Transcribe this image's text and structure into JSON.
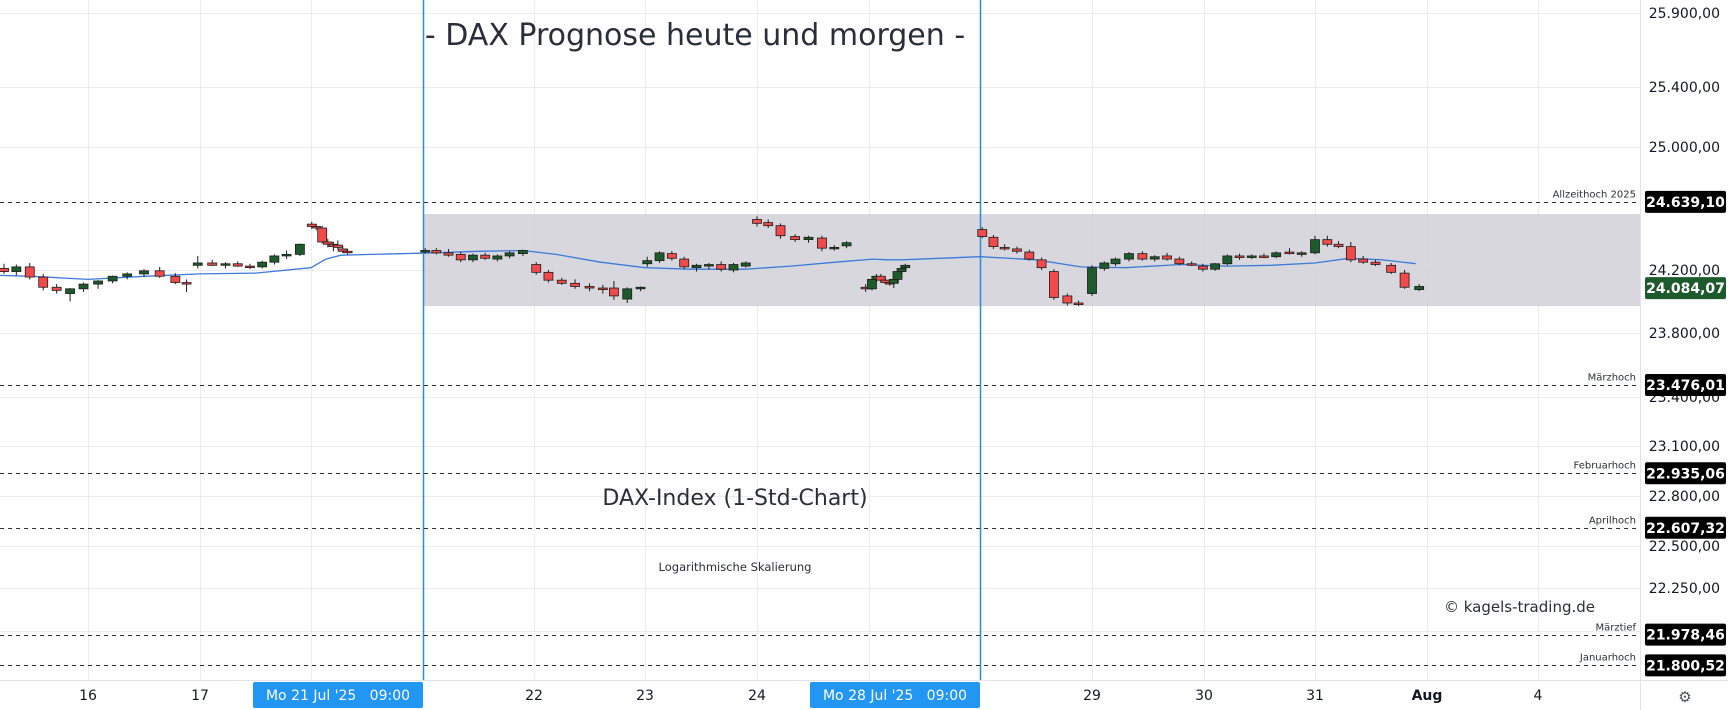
{
  "title": "- DAX Prognose heute und morgen -",
  "subtitle": "DAX-Index (1-Std-Chart)",
  "scale_note": "Logarithmische Skalierung",
  "copyright": "© kagels-trading.de",
  "settings_icon": "settings-gear-icon",
  "colors": {
    "up": "#1e5b2c",
    "down": "#f04a4a",
    "ma": "#3d7bd9",
    "zone": "#d3d3d9",
    "vline": "#2a8bd6",
    "grid": "#ececee",
    "label_bg": "#000000",
    "date_label_bg": "#2196f3"
  },
  "chart_data": {
    "type": "candlestick",
    "title": "- DAX Prognose heute und morgen -",
    "subtitle": "DAX-Index (1-Std-Chart)",
    "y_scale": "log",
    "ylim": [
      21650,
      26050
    ],
    "y_ticks": [
      "25.900,00",
      "25.400,00",
      "25.000,00",
      "24.200,00",
      "23.800,00",
      "23.400,00",
      "23.100,00",
      "22.800,00",
      "22.500,00",
      "22.250,00",
      "22.000,00"
    ],
    "x_ticks": [
      "16",
      "17",
      "18",
      "Mo 21 Jul '25   09:00",
      "22",
      "23",
      "24",
      "25",
      "Mo 28 Jul '25   09:00",
      "29",
      "30",
      "31",
      "Aug",
      "4"
    ],
    "highlighted_x_labels": [
      "Mo 21 Jul '25   09:00",
      "Mo 28 Jul '25   09:00"
    ],
    "x_tick_days": [
      16,
      17,
      18,
      21,
      22,
      23,
      24,
      25,
      28,
      29,
      30,
      31,
      32,
      35
    ],
    "vertical_markers": [
      21,
      28
    ],
    "range_zone": {
      "from_day": 21,
      "low": 23970,
      "high": 24560
    },
    "levels": [
      {
        "label": "Allzeithoch 2025",
        "value": 24639.1,
        "price_label": "24.639,10"
      },
      {
        "label": "Märzhoch",
        "value": 23476.01,
        "price_label": "23.476,01"
      },
      {
        "label": "Februarhoch",
        "value": 22935.06,
        "price_label": "22.935,06"
      },
      {
        "label": "Aprilhoch",
        "value": 22607.32,
        "price_label": "22.607,32"
      },
      {
        "label": "Märztief",
        "value": 21978.46,
        "price_label": "21.978,46"
      },
      {
        "label": "Januarhoch",
        "value": 21800.52,
        "price_label": "21.800,52"
      }
    ],
    "last_price": {
      "value": 24084.07,
      "label": "24.084,07"
    },
    "candles": [
      {
        "d": 15.15,
        "o": 24225,
        "h": 24245,
        "l": 24185,
        "c": 24210
      },
      {
        "d": 15.25,
        "o": 24210,
        "h": 24240,
        "l": 24175,
        "c": 24190
      },
      {
        "d": 15.36,
        "o": 24190,
        "h": 24235,
        "l": 24165,
        "c": 24220
      },
      {
        "d": 15.48,
        "o": 24220,
        "h": 24245,
        "l": 24140,
        "c": 24155
      },
      {
        "d": 15.6,
        "o": 24155,
        "h": 24175,
        "l": 24070,
        "c": 24090
      },
      {
        "d": 15.72,
        "o": 24090,
        "h": 24110,
        "l": 24050,
        "c": 24070
      },
      {
        "d": 15.84,
        "o": 24050,
        "h": 24085,
        "l": 24000,
        "c": 24080
      },
      {
        "d": 15.96,
        "o": 24080,
        "h": 24120,
        "l": 24060,
        "c": 24110
      },
      {
        "d": 16.09,
        "o": 24110,
        "h": 24135,
        "l": 24080,
        "c": 24130
      },
      {
        "d": 16.22,
        "o": 24130,
        "h": 24165,
        "l": 24115,
        "c": 24160
      },
      {
        "d": 16.35,
        "o": 24160,
        "h": 24185,
        "l": 24140,
        "c": 24175
      },
      {
        "d": 16.5,
        "o": 24175,
        "h": 24205,
        "l": 24155,
        "c": 24195
      },
      {
        "d": 16.64,
        "o": 24195,
        "h": 24220,
        "l": 24150,
        "c": 24160
      },
      {
        "d": 16.78,
        "o": 24160,
        "h": 24180,
        "l": 24110,
        "c": 24120
      },
      {
        "d": 16.88,
        "o": 24120,
        "h": 24140,
        "l": 24060,
        "c": 24110
      },
      {
        "d": 16.98,
        "o": 24230,
        "h": 24290,
        "l": 24210,
        "c": 24245
      },
      {
        "d": 17.11,
        "o": 24245,
        "h": 24265,
        "l": 24225,
        "c": 24230
      },
      {
        "d": 17.23,
        "o": 24230,
        "h": 24250,
        "l": 24210,
        "c": 24240
      },
      {
        "d": 17.34,
        "o": 24240,
        "h": 24255,
        "l": 24220,
        "c": 24225
      },
      {
        "d": 17.45,
        "o": 24225,
        "h": 24240,
        "l": 24205,
        "c": 24220
      },
      {
        "d": 17.56,
        "o": 24220,
        "h": 24260,
        "l": 24210,
        "c": 24250
      },
      {
        "d": 17.67,
        "o": 24250,
        "h": 24300,
        "l": 24235,
        "c": 24290
      },
      {
        "d": 17.78,
        "o": 24290,
        "h": 24325,
        "l": 24270,
        "c": 24300
      },
      {
        "d": 17.9,
        "o": 24300,
        "h": 24370,
        "l": 24290,
        "c": 24365
      },
      {
        "d": 18.02,
        "o": 24495,
        "h": 24510,
        "l": 24465,
        "c": 24480
      },
      {
        "d": 18.14,
        "o": 24480,
        "h": 24495,
        "l": 24455,
        "c": 24475
      },
      {
        "d": 18.3,
        "o": 24470,
        "h": 24485,
        "l": 24370,
        "c": 24380
      },
      {
        "d": 18.45,
        "o": 24380,
        "h": 24400,
        "l": 24345,
        "c": 24365
      },
      {
        "d": 18.6,
        "o": 24365,
        "h": 24380,
        "l": 24320,
        "c": 24350
      },
      {
        "d": 18.72,
        "o": 24360,
        "h": 24390,
        "l": 24330,
        "c": 24345
      },
      {
        "d": 18.85,
        "o": 24335,
        "h": 24355,
        "l": 24310,
        "c": 24320
      },
      {
        "d": 18.98,
        "o": 24320,
        "h": 24335,
        "l": 24300,
        "c": 24315
      },
      {
        "d": 21.02,
        "o": 24320,
        "h": 24340,
        "l": 24305,
        "c": 24325
      },
      {
        "d": 21.12,
        "o": 24325,
        "h": 24340,
        "l": 24300,
        "c": 24310
      },
      {
        "d": 21.23,
        "o": 24310,
        "h": 24335,
        "l": 24285,
        "c": 24295
      },
      {
        "d": 21.34,
        "o": 24300,
        "h": 24315,
        "l": 24250,
        "c": 24265
      },
      {
        "d": 21.45,
        "o": 24265,
        "h": 24305,
        "l": 24250,
        "c": 24295
      },
      {
        "d": 21.56,
        "o": 24295,
        "h": 24310,
        "l": 24265,
        "c": 24275
      },
      {
        "d": 21.67,
        "o": 24270,
        "h": 24300,
        "l": 24255,
        "c": 24290
      },
      {
        "d": 21.78,
        "o": 24290,
        "h": 24320,
        "l": 24275,
        "c": 24310
      },
      {
        "d": 21.9,
        "o": 24305,
        "h": 24330,
        "l": 24290,
        "c": 24325
      },
      {
        "d": 22.02,
        "o": 24235,
        "h": 24250,
        "l": 24170,
        "c": 24185
      },
      {
        "d": 22.13,
        "o": 24185,
        "h": 24200,
        "l": 24120,
        "c": 24135
      },
      {
        "d": 22.25,
        "o": 24135,
        "h": 24150,
        "l": 24105,
        "c": 24115
      },
      {
        "d": 22.37,
        "o": 24115,
        "h": 24140,
        "l": 24080,
        "c": 24095
      },
      {
        "d": 22.5,
        "o": 24095,
        "h": 24115,
        "l": 24065,
        "c": 24085
      },
      {
        "d": 22.62,
        "o": 24085,
        "h": 24105,
        "l": 24050,
        "c": 24075
      },
      {
        "d": 22.72,
        "o": 24085,
        "h": 24130,
        "l": 24010,
        "c": 24035
      },
      {
        "d": 22.84,
        "o": 24015,
        "h": 24090,
        "l": 23990,
        "c": 24080
      },
      {
        "d": 22.96,
        "o": 24080,
        "h": 24095,
        "l": 24065,
        "c": 24090
      },
      {
        "d": 23.02,
        "o": 24240,
        "h": 24285,
        "l": 24220,
        "c": 24260
      },
      {
        "d": 23.13,
        "o": 24260,
        "h": 24320,
        "l": 24245,
        "c": 24310
      },
      {
        "d": 23.24,
        "o": 24305,
        "h": 24320,
        "l": 24260,
        "c": 24275
      },
      {
        "d": 23.35,
        "o": 24270,
        "h": 24285,
        "l": 24205,
        "c": 24220
      },
      {
        "d": 23.46,
        "o": 24215,
        "h": 24240,
        "l": 24190,
        "c": 24230
      },
      {
        "d": 23.57,
        "o": 24225,
        "h": 24245,
        "l": 24205,
        "c": 24235
      },
      {
        "d": 23.68,
        "o": 24235,
        "h": 24255,
        "l": 24190,
        "c": 24205
      },
      {
        "d": 23.79,
        "o": 24200,
        "h": 24245,
        "l": 24185,
        "c": 24235
      },
      {
        "d": 23.9,
        "o": 24225,
        "h": 24255,
        "l": 24215,
        "c": 24245
      },
      {
        "d": 24.0,
        "o": 24525,
        "h": 24545,
        "l": 24480,
        "c": 24500
      },
      {
        "d": 24.1,
        "o": 24505,
        "h": 24525,
        "l": 24470,
        "c": 24485
      },
      {
        "d": 24.21,
        "o": 24485,
        "h": 24500,
        "l": 24400,
        "c": 24420
      },
      {
        "d": 24.34,
        "o": 24415,
        "h": 24430,
        "l": 24380,
        "c": 24395
      },
      {
        "d": 24.46,
        "o": 24395,
        "h": 24420,
        "l": 24375,
        "c": 24410
      },
      {
        "d": 24.58,
        "o": 24405,
        "h": 24420,
        "l": 24320,
        "c": 24340
      },
      {
        "d": 24.69,
        "o": 24340,
        "h": 24360,
        "l": 24325,
        "c": 24345
      },
      {
        "d": 24.8,
        "o": 24355,
        "h": 24385,
        "l": 24340,
        "c": 24375
      },
      {
        "d": 24.97,
        "o": 24090,
        "h": 24110,
        "l": 24060,
        "c": 24080
      },
      {
        "d": 25.08,
        "o": 24080,
        "h": 24150,
        "l": 24070,
        "c": 24140
      },
      {
        "d": 25.2,
        "o": 24140,
        "h": 24175,
        "l": 24120,
        "c": 24160
      },
      {
        "d": 25.32,
        "o": 24160,
        "h": 24175,
        "l": 24125,
        "c": 24135
      },
      {
        "d": 25.44,
        "o": 24135,
        "h": 24150,
        "l": 24110,
        "c": 24120
      },
      {
        "d": 25.56,
        "o": 24120,
        "h": 24135,
        "l": 24100,
        "c": 24115
      },
      {
        "d": 25.67,
        "o": 24115,
        "h": 24150,
        "l": 24085,
        "c": 24140
      },
      {
        "d": 25.77,
        "o": 24140,
        "h": 24200,
        "l": 24120,
        "c": 24190
      },
      {
        "d": 25.88,
        "o": 24190,
        "h": 24225,
        "l": 24175,
        "c": 24210
      },
      {
        "d": 25.98,
        "o": 24215,
        "h": 24240,
        "l": 24200,
        "c": 24230
      },
      {
        "d": 28.02,
        "o": 24460,
        "h": 24475,
        "l": 24405,
        "c": 24415
      },
      {
        "d": 28.12,
        "o": 24410,
        "h": 24425,
        "l": 24335,
        "c": 24350
      },
      {
        "d": 28.22,
        "o": 24345,
        "h": 24365,
        "l": 24325,
        "c": 24335
      },
      {
        "d": 28.33,
        "o": 24335,
        "h": 24350,
        "l": 24305,
        "c": 24320
      },
      {
        "d": 28.44,
        "o": 24315,
        "h": 24330,
        "l": 24260,
        "c": 24270
      },
      {
        "d": 28.55,
        "o": 24265,
        "h": 24280,
        "l": 24200,
        "c": 24215
      },
      {
        "d": 28.66,
        "o": 24190,
        "h": 24205,
        "l": 24010,
        "c": 24025
      },
      {
        "d": 28.78,
        "o": 24035,
        "h": 24050,
        "l": 23975,
        "c": 23990
      },
      {
        "d": 28.88,
        "o": 23990,
        "h": 24005,
        "l": 23970,
        "c": 23980
      },
      {
        "d": 29.0,
        "o": 24050,
        "h": 24230,
        "l": 24035,
        "c": 24215
      },
      {
        "d": 29.11,
        "o": 24210,
        "h": 24255,
        "l": 24195,
        "c": 24245
      },
      {
        "d": 29.21,
        "o": 24240,
        "h": 24280,
        "l": 24225,
        "c": 24270
      },
      {
        "d": 29.33,
        "o": 24270,
        "h": 24315,
        "l": 24255,
        "c": 24305
      },
      {
        "d": 29.45,
        "o": 24305,
        "h": 24320,
        "l": 24260,
        "c": 24270
      },
      {
        "d": 29.56,
        "o": 24270,
        "h": 24295,
        "l": 24255,
        "c": 24285
      },
      {
        "d": 29.67,
        "o": 24290,
        "h": 24310,
        "l": 24260,
        "c": 24270
      },
      {
        "d": 29.78,
        "o": 24270,
        "h": 24285,
        "l": 24230,
        "c": 24240
      },
      {
        "d": 29.89,
        "o": 24240,
        "h": 24255,
        "l": 24225,
        "c": 24235
      },
      {
        "d": 29.99,
        "o": 24225,
        "h": 24240,
        "l": 24190,
        "c": 24205
      },
      {
        "d": 30.1,
        "o": 24205,
        "h": 24245,
        "l": 24195,
        "c": 24240
      },
      {
        "d": 30.21,
        "o": 24240,
        "h": 24300,
        "l": 24230,
        "c": 24290
      },
      {
        "d": 30.32,
        "o": 24290,
        "h": 24305,
        "l": 24265,
        "c": 24280
      },
      {
        "d": 30.43,
        "o": 24280,
        "h": 24300,
        "l": 24270,
        "c": 24290
      },
      {
        "d": 30.54,
        "o": 24290,
        "h": 24305,
        "l": 24275,
        "c": 24285
      },
      {
        "d": 30.65,
        "o": 24285,
        "h": 24320,
        "l": 24275,
        "c": 24310
      },
      {
        "d": 30.77,
        "o": 24315,
        "h": 24340,
        "l": 24300,
        "c": 24305
      },
      {
        "d": 30.88,
        "o": 24300,
        "h": 24320,
        "l": 24285,
        "c": 24310
      },
      {
        "d": 31.0,
        "o": 24310,
        "h": 24420,
        "l": 24300,
        "c": 24395
      },
      {
        "d": 31.11,
        "o": 24395,
        "h": 24420,
        "l": 24350,
        "c": 24365
      },
      {
        "d": 31.21,
        "o": 24365,
        "h": 24385,
        "l": 24340,
        "c": 24350
      },
      {
        "d": 31.32,
        "o": 24350,
        "h": 24380,
        "l": 24250,
        "c": 24265
      },
      {
        "d": 31.43,
        "o": 24270,
        "h": 24290,
        "l": 24240,
        "c": 24250
      },
      {
        "d": 31.54,
        "o": 24250,
        "h": 24265,
        "l": 24225,
        "c": 24235
      },
      {
        "d": 31.68,
        "o": 24230,
        "h": 24245,
        "l": 24175,
        "c": 24185
      },
      {
        "d": 31.8,
        "o": 24180,
        "h": 24200,
        "l": 24080,
        "c": 24090
      },
      {
        "d": 31.93,
        "o": 24075,
        "h": 24110,
        "l": 24065,
        "c": 24095
      }
    ],
    "moving_average": [
      {
        "d": 15.0,
        "v": 24170
      },
      {
        "d": 15.5,
        "v": 24160
      },
      {
        "d": 16.0,
        "v": 24140
      },
      {
        "d": 16.5,
        "v": 24160
      },
      {
        "d": 17.0,
        "v": 24175
      },
      {
        "d": 17.5,
        "v": 24180
      },
      {
        "d": 18.0,
        "v": 24215
      },
      {
        "d": 18.4,
        "v": 24270
      },
      {
        "d": 18.8,
        "v": 24295
      },
      {
        "d": 21.1,
        "v": 24310
      },
      {
        "d": 21.5,
        "v": 24320
      },
      {
        "d": 21.9,
        "v": 24325
      },
      {
        "d": 22.2,
        "v": 24300
      },
      {
        "d": 22.6,
        "v": 24250
      },
      {
        "d": 23.0,
        "v": 24215
      },
      {
        "d": 23.4,
        "v": 24205
      },
      {
        "d": 23.9,
        "v": 24205
      },
      {
        "d": 24.3,
        "v": 24225
      },
      {
        "d": 24.7,
        "v": 24250
      },
      {
        "d": 25.1,
        "v": 24270
      },
      {
        "d": 25.5,
        "v": 24265
      },
      {
        "d": 25.9,
        "v": 24265
      },
      {
        "d": 28.0,
        "v": 24285
      },
      {
        "d": 28.5,
        "v": 24265
      },
      {
        "d": 28.9,
        "v": 24220
      },
      {
        "d": 29.3,
        "v": 24215
      },
      {
        "d": 29.8,
        "v": 24235
      },
      {
        "d": 30.2,
        "v": 24225
      },
      {
        "d": 30.6,
        "v": 24230
      },
      {
        "d": 31.0,
        "v": 24245
      },
      {
        "d": 31.3,
        "v": 24275
      },
      {
        "d": 31.6,
        "v": 24265
      },
      {
        "d": 31.9,
        "v": 24240
      }
    ]
  }
}
